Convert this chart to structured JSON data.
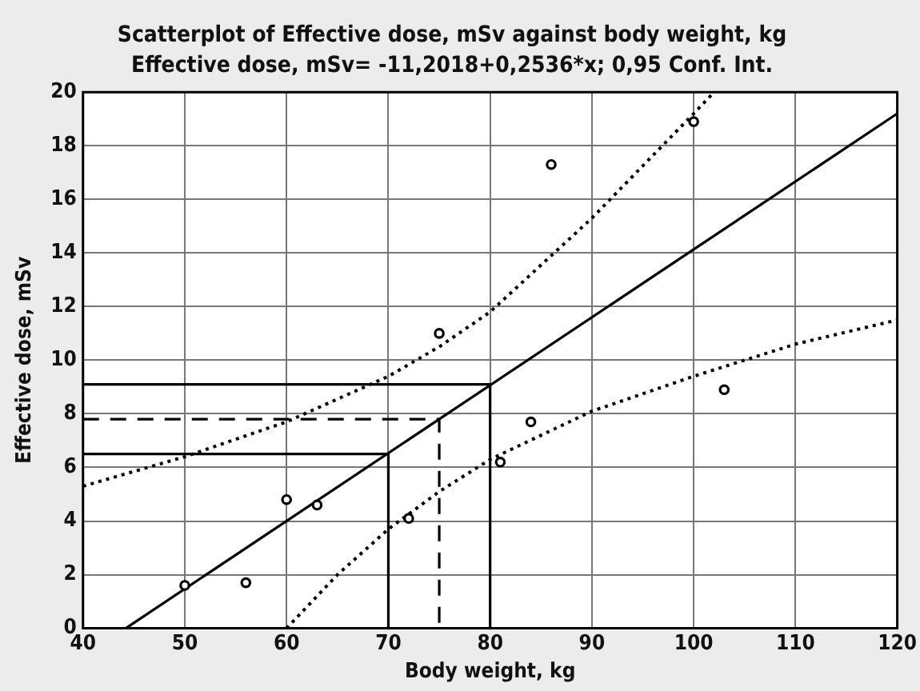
{
  "chart_data": {
    "type": "scatter",
    "title": "Scatterplot of Effective dose, mSv against body weight, kg",
    "subtitle": "Effective dose, mSv= -11,2018+0,2536*x; 0,95 Conf. Int.",
    "xlabel": "Body weight, kg",
    "ylabel": "Effective dose, mSv",
    "series": [
      {
        "type": "scatter",
        "color": "#000000",
        "marker": "circle",
        "x": [
          50,
          56,
          60,
          63,
          72,
          75,
          81,
          84,
          86,
          100,
          103
        ],
        "values": [
          1.6,
          1.7,
          4.8,
          4.6,
          4.1,
          11.0,
          6.2,
          7.7,
          17.3,
          18.9,
          8.9
        ]
      },
      {
        "type": "line",
        "color": "#000000",
        "marker": "none",
        "line_style": "solid",
        "x": [
          44.2,
          120
        ],
        "values": [
          0,
          19.2
        ]
      },
      {
        "type": "line",
        "color": "#000000",
        "marker": "none",
        "line_style": "dotted",
        "x": [
          40,
          50,
          60,
          70,
          75,
          80,
          90,
          100,
          102
        ],
        "values": [
          5.3,
          6.4,
          7.7,
          9.4,
          10.5,
          11.8,
          15.3,
          19.2,
          20
        ]
      },
      {
        "type": "line",
        "color": "#000000",
        "marker": "none",
        "line_style": "dotted",
        "x": [
          60,
          65,
          70,
          75,
          80,
          90,
          100,
          110,
          120
        ],
        "values": [
          0,
          2.0,
          3.7,
          5.1,
          6.3,
          8.1,
          9.4,
          10.6,
          11.5
        ]
      },
      {
        "type": "line",
        "color": "#000000",
        "marker": "none",
        "line_style": "solid",
        "x": [
          40,
          80,
          80
        ],
        "values": [
          9.1,
          9.1,
          0
        ]
      },
      {
        "type": "line",
        "color": "#000000",
        "marker": "none",
        "line_style": "solid",
        "x": [
          40,
          70,
          70
        ],
        "values": [
          6.5,
          6.5,
          0
        ]
      },
      {
        "type": "line",
        "color": "#000000",
        "marker": "none",
        "line_style": "dashed",
        "x": [
          40,
          75,
          75
        ],
        "values": [
          7.8,
          7.8,
          0
        ]
      }
    ],
    "xlim": [
      40,
      120
    ],
    "xticks": [
      40,
      50,
      60,
      70,
      80,
      90,
      100,
      110,
      120
    ],
    "ylim": [
      0,
      20
    ],
    "yticks": [
      0,
      2,
      4,
      6,
      8,
      10,
      12,
      14,
      16,
      18,
      20
    ],
    "grid": true,
    "legend": false
  }
}
